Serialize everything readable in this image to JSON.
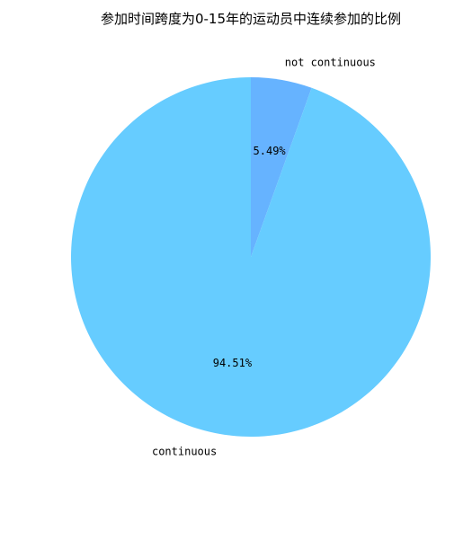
{
  "chart_data": {
    "type": "pie",
    "title": "参加时间跨度为0-15年的运动员中连续参加的比例",
    "start_angle_deg": 90,
    "direction": "clockwise",
    "slices": [
      {
        "label": "not continuous",
        "value": 5.49,
        "pct_text": "5.49%",
        "color": "#66b3ff"
      },
      {
        "label": "continuous",
        "value": 94.51,
        "pct_text": "94.51%",
        "color": "#66ccff"
      }
    ]
  }
}
